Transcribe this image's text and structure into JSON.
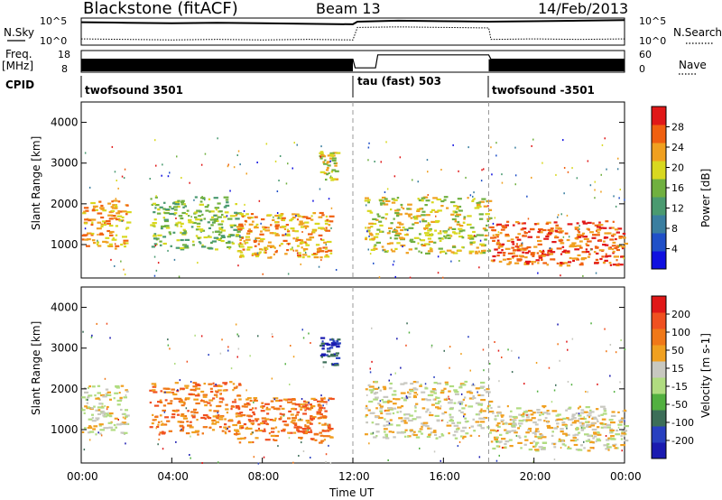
{
  "header": {
    "station": "Blackstone (fitACF)",
    "beam": "Beam 13",
    "date": "14/Feb/2013"
  },
  "side_labels": {
    "nsky": "N.Sky",
    "nsearch": "N.Search",
    "freq": "Freq.",
    "freq_unit": "[MHz]",
    "nave": "Nave",
    "cpid": "CPID"
  },
  "cpid_segments": [
    {
      "label": "twofsound 3501",
      "start_hour": 0,
      "end_hour": 12
    },
    {
      "label": "tau (fast) 503",
      "start_hour": 12,
      "end_hour": 18
    },
    {
      "label": "twofsound -3501",
      "start_hour": 18,
      "end_hour": 24
    }
  ],
  "colors": {
    "power_scale": [
      "#1010e0",
      "#2050c8",
      "#3a7ea0",
      "#4a9a70",
      "#70b040",
      "#d8d820",
      "#f0a020",
      "#f06010",
      "#e01818"
    ],
    "velocity_scale": [
      "#1a1ab0",
      "#2840c0",
      "#3c6e58",
      "#52b040",
      "#b0dc80",
      "#c8c8c0",
      "#f0a020",
      "#f07818",
      "#f05020",
      "#e01818"
    ]
  },
  "chart_data": [
    {
      "type": "line",
      "name": "noise-panel",
      "left_axis_ticks": [
        "10^5",
        "10^0"
      ],
      "right_axis_ticks": [
        "10^5",
        "10^0"
      ],
      "x_range_hours": [
        0,
        24
      ],
      "series": [
        {
          "name": "N.Sky",
          "log_values_hours": [
            [
              0,
              4.4
            ],
            [
              2,
              4.3
            ],
            [
              4,
              4.2
            ],
            [
              6,
              4.3
            ],
            [
              8,
              4.2
            ],
            [
              10,
              4.1
            ],
            [
              12,
              4.0
            ],
            [
              12.2,
              4.5
            ],
            [
              14,
              4.7
            ],
            [
              16,
              4.6
            ],
            [
              18,
              4.5
            ],
            [
              20,
              4.6
            ],
            [
              22,
              4.7
            ],
            [
              24,
              4.8
            ]
          ]
        },
        {
          "name": "N.Search",
          "log_values_hours": [
            [
              0,
              1.2
            ],
            [
              2,
              1.1
            ],
            [
              4,
              1.0
            ],
            [
              6,
              1.1
            ],
            [
              8,
              1.0
            ],
            [
              10,
              1.1
            ],
            [
              12,
              1.0
            ],
            [
              12.2,
              3.4
            ],
            [
              14,
              3.5
            ],
            [
              16,
              3.4
            ],
            [
              18,
              3.3
            ],
            [
              18.1,
              1.1
            ],
            [
              20,
              1.2
            ],
            [
              22,
              1.1
            ],
            [
              24,
              1.2
            ]
          ]
        }
      ]
    },
    {
      "type": "line",
      "name": "frequency-panel",
      "left_axis_ticks": [
        "18",
        "8"
      ],
      "right_axis_ticks": [
        "60",
        "0"
      ],
      "series": [
        {
          "name": "Freq.",
          "points": [
            [
              0,
              14
            ],
            [
              12,
              14
            ],
            [
              12.1,
              10
            ],
            [
              13,
              10
            ],
            [
              13.1,
              16
            ],
            [
              18,
              16
            ],
            [
              18.1,
              14
            ],
            [
              24,
              14
            ]
          ]
        }
      ]
    },
    {
      "type": "heatmap",
      "name": "power",
      "ylabel": "Slant Range [km]",
      "y_ticks": [
        1000,
        2000,
        3000,
        4000
      ],
      "ylim_km": [
        180,
        4500
      ],
      "x_range_hours": [
        0,
        24
      ],
      "colorbar_label": "Power [dB]",
      "colorbar_ticks": [
        "4",
        "8",
        "12",
        "16",
        "20",
        "24",
        "28"
      ],
      "regions": [
        {
          "start_hour": 0.0,
          "end_hour": 2.0,
          "low_km": 900,
          "high_km": 2100,
          "level": 6
        },
        {
          "start_hour": 3.0,
          "end_hour": 7.0,
          "low_km": 900,
          "high_km": 2200,
          "level": 4
        },
        {
          "start_hour": 6.8,
          "end_hour": 11.0,
          "low_km": 700,
          "high_km": 1800,
          "level": 6
        },
        {
          "start_hour": 10.5,
          "end_hour": 11.3,
          "low_km": 2600,
          "high_km": 3300,
          "level": 5
        },
        {
          "start_hour": 12.5,
          "end_hour": 18.0,
          "low_km": 800,
          "high_km": 2200,
          "level": 5
        },
        {
          "start_hour": 18.0,
          "end_hour": 24.0,
          "low_km": 500,
          "high_km": 1600,
          "level": 7
        }
      ]
    },
    {
      "type": "heatmap",
      "name": "velocity",
      "ylabel": "Slant Range [km]",
      "y_ticks": [
        1000,
        2000,
        3000,
        4000
      ],
      "ylim_km": [
        180,
        4500
      ],
      "x_range_hours": [
        0,
        24
      ],
      "xlabel": "Time UT",
      "x_tick_labels": [
        "00:00",
        "04:00",
        "08:00",
        "12:00",
        "16:00",
        "20:00",
        "00:00"
      ],
      "colorbar_label": "Velocity [m s-1]",
      "colorbar_ticks": [
        "-200",
        "-100",
        "-50",
        "-15",
        "15",
        "50",
        "100",
        "200"
      ],
      "regions": [
        {
          "start_hour": 0.0,
          "end_hour": 2.0,
          "low_km": 900,
          "high_km": 2100,
          "level": 5
        },
        {
          "start_hour": 3.0,
          "end_hour": 7.0,
          "low_km": 900,
          "high_km": 2200,
          "level": 7
        },
        {
          "start_hour": 6.8,
          "end_hour": 11.0,
          "low_km": 700,
          "high_km": 1800,
          "level": 7
        },
        {
          "start_hour": 10.5,
          "end_hour": 11.3,
          "low_km": 2600,
          "high_km": 3300,
          "level": 1
        },
        {
          "start_hour": 12.5,
          "end_hour": 18.0,
          "low_km": 800,
          "high_km": 2200,
          "level": 5
        },
        {
          "start_hour": 18.0,
          "end_hour": 24.0,
          "low_km": 500,
          "high_km": 1600,
          "level": 5
        }
      ]
    }
  ]
}
